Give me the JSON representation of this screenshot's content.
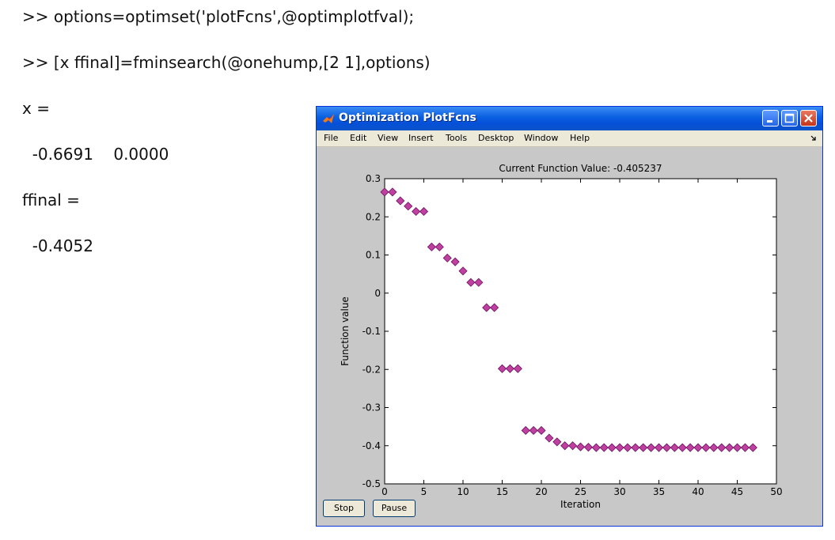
{
  "console": {
    "line1": ">> options=optimset('plotFcns',@optimplotfval);",
    "line2": ">> [x ffinal]=fminsearch(@onehump,[2 1],options)",
    "line3": "x =",
    "line4": "  -0.6691    0.0000",
    "line5": "ffinal =",
    "line6": "  -0.4052"
  },
  "window": {
    "title": "Optimization PlotFcns",
    "menu": [
      "File",
      "Edit",
      "View",
      "Insert",
      "Tools",
      "Desktop",
      "Window",
      "Help"
    ],
    "buttons": {
      "stop": "Stop",
      "pause": "Pause"
    },
    "title_icon": "matlab-logo-icon",
    "control_icons": [
      "minimize-icon",
      "maximize-icon",
      "close-icon"
    ]
  },
  "chart_data": {
    "type": "scatter",
    "title": "Current Function Value: -0.405237",
    "xlabel": "Iteration",
    "ylabel": "Function value",
    "xlim": [
      0,
      50
    ],
    "ylim": [
      -0.5,
      0.3
    ],
    "xticks": [
      0,
      5,
      10,
      15,
      20,
      25,
      30,
      35,
      40,
      45,
      50
    ],
    "yticks": [
      0.3,
      0.2,
      0.1,
      0,
      -0.1,
      -0.2,
      -0.3,
      -0.4,
      -0.5
    ],
    "ytick_labels": [
      "0.3",
      "0.2",
      "0.1",
      "0",
      "-0.1",
      "-0.2",
      "-0.3",
      "-0.4",
      "-0.5"
    ],
    "marker": "diamond",
    "marker_color": "#c040a0",
    "points": [
      [
        0,
        0.265
      ],
      [
        1,
        0.265
      ],
      [
        2,
        0.242
      ],
      [
        3,
        0.228
      ],
      [
        4,
        0.214
      ],
      [
        5,
        0.214
      ],
      [
        6,
        0.121
      ],
      [
        7,
        0.121
      ],
      [
        8,
        0.092
      ],
      [
        9,
        0.082
      ],
      [
        10,
        0.058
      ],
      [
        11,
        0.028
      ],
      [
        12,
        0.028
      ],
      [
        13,
        -0.038
      ],
      [
        14,
        -0.038
      ],
      [
        15,
        -0.198
      ],
      [
        16,
        -0.198
      ],
      [
        17,
        -0.198
      ],
      [
        18,
        -0.36
      ],
      [
        19,
        -0.36
      ],
      [
        20,
        -0.36
      ],
      [
        21,
        -0.38
      ],
      [
        22,
        -0.39
      ],
      [
        23,
        -0.4
      ],
      [
        24,
        -0.4
      ],
      [
        25,
        -0.403
      ],
      [
        26,
        -0.404
      ],
      [
        27,
        -0.405
      ],
      [
        28,
        -0.405
      ],
      [
        29,
        -0.405
      ],
      [
        30,
        -0.405
      ],
      [
        31,
        -0.405
      ],
      [
        32,
        -0.405
      ],
      [
        33,
        -0.405
      ],
      [
        34,
        -0.405
      ],
      [
        35,
        -0.405
      ],
      [
        36,
        -0.405
      ],
      [
        37,
        -0.405
      ],
      [
        38,
        -0.405
      ],
      [
        39,
        -0.405
      ],
      [
        40,
        -0.405
      ],
      [
        41,
        -0.405
      ],
      [
        42,
        -0.405
      ],
      [
        43,
        -0.405
      ],
      [
        44,
        -0.405
      ],
      [
        45,
        -0.405
      ],
      [
        46,
        -0.405
      ],
      [
        47,
        -0.405
      ]
    ]
  }
}
